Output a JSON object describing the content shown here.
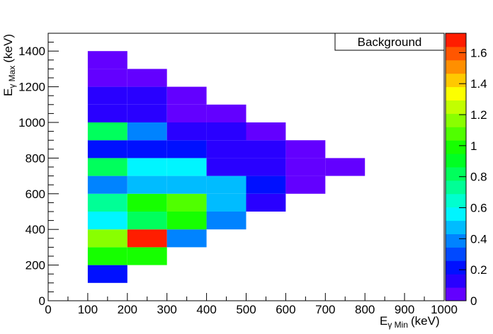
{
  "chart_data": {
    "type": "heatmap",
    "x_label": {
      "main": "E",
      "sub": "γ Min",
      "unit": "(keV)"
    },
    "y_label": {
      "main": "E",
      "sub": "γ Max",
      "unit": "(keV)"
    },
    "legend_text": "Background",
    "x_bins": [
      0,
      100,
      200,
      300,
      400,
      500,
      600,
      700,
      800,
      900,
      1000
    ],
    "y_bins": [
      0,
      100,
      200,
      300,
      400,
      500,
      600,
      700,
      800,
      900,
      1000,
      1100,
      1200,
      1300,
      1400,
      1500
    ],
    "values": [
      [
        null,
        null,
        null,
        null,
        null,
        null,
        null,
        null,
        null,
        null
      ],
      [
        null,
        0.2,
        null,
        null,
        null,
        null,
        null,
        null,
        null,
        null
      ],
      [
        null,
        1.0,
        1.0,
        null,
        null,
        null,
        null,
        null,
        null,
        null
      ],
      [
        null,
        1.15,
        1.7,
        0.35,
        null,
        null,
        null,
        null,
        null,
        null
      ],
      [
        null,
        0.6,
        0.8,
        0.95,
        0.35,
        null,
        null,
        null,
        null,
        null
      ],
      [
        null,
        0.75,
        1.0,
        1.05,
        0.45,
        0.15,
        null,
        null,
        null,
        null
      ],
      [
        null,
        0.35,
        0.45,
        0.45,
        0.45,
        0.22,
        0.08,
        null,
        null,
        null
      ],
      [
        null,
        0.85,
        0.52,
        0.52,
        0.15,
        0.15,
        0.05,
        0.05,
        null,
        null
      ],
      [
        null,
        0.2,
        0.2,
        0.2,
        0.15,
        0.15,
        0.07,
        null,
        null,
        null
      ],
      [
        null,
        0.85,
        0.35,
        0.15,
        0.15,
        0.07,
        null,
        null,
        null,
        null
      ],
      [
        null,
        0.15,
        0.15,
        0.07,
        0.07,
        null,
        null,
        null,
        null,
        null
      ],
      [
        null,
        0.15,
        0.15,
        0.07,
        null,
        null,
        null,
        null,
        null,
        null
      ],
      [
        null,
        0.07,
        0.07,
        null,
        null,
        null,
        null,
        null,
        null,
        null
      ],
      [
        null,
        0.07,
        null,
        null,
        null,
        null,
        null,
        null,
        null,
        null
      ],
      [
        null,
        null,
        null,
        null,
        null,
        null,
        null,
        null,
        null,
        null
      ]
    ],
    "xlim": [
      0,
      1000
    ],
    "xticks": [
      0,
      100,
      200,
      300,
      400,
      500,
      600,
      700,
      800,
      900,
      1000
    ],
    "ylim": [
      0,
      1500
    ],
    "yticks": [
      0,
      200,
      400,
      600,
      800,
      1000,
      1200,
      1400
    ],
    "zlim": [
      0,
      1.725
    ],
    "zticks": [
      0,
      0.2,
      0.4,
      0.6,
      0.8,
      1,
      1.2,
      1.4,
      1.6
    ],
    "contours": 20
  }
}
